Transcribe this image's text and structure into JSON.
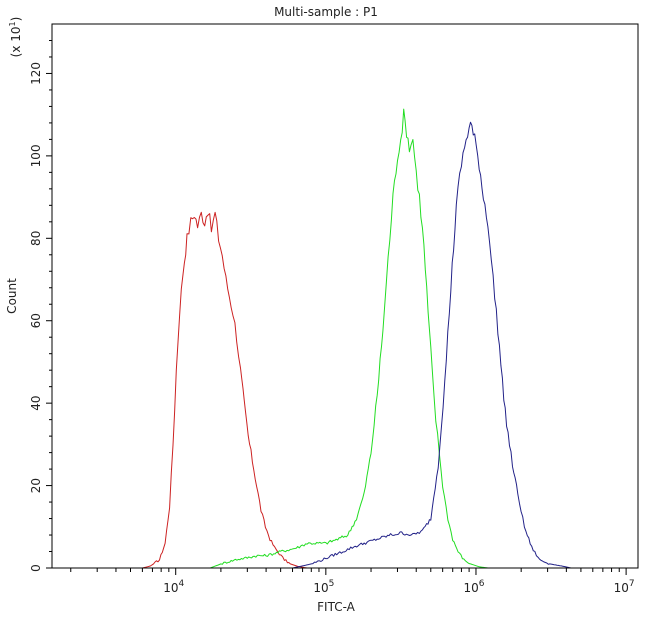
{
  "chart_data": {
    "type": "line",
    "title": "Multi-sample : P1",
    "xlabel": "FITC-A",
    "ylabel": "Count",
    "y_multiplier_label": "(x 10",
    "y_multiplier_exp": "1",
    "y_multiplier_close": ")",
    "xscale": "log",
    "xlim": [
      1500,
      12000000
    ],
    "ylim": [
      0,
      132
    ],
    "x_major_ticks": [
      {
        "value": 10000,
        "base": "10",
        "exp": "4"
      },
      {
        "value": 100000,
        "base": "10",
        "exp": "5"
      },
      {
        "value": 1000000,
        "base": "10",
        "exp": "6"
      },
      {
        "value": 10000000,
        "base": "10",
        "exp": "7"
      }
    ],
    "y_ticks": [
      {
        "value": 0,
        "label": "0"
      },
      {
        "value": 20,
        "label": "20"
      },
      {
        "value": 40,
        "label": "40"
      },
      {
        "value": 60,
        "label": "60"
      },
      {
        "value": 80,
        "label": "80"
      },
      {
        "value": 100,
        "label": "100"
      },
      {
        "value": 120,
        "label": "120"
      }
    ],
    "grid": false,
    "legend": "none",
    "series": [
      {
        "color": "#cc2222",
        "points": [
          [
            6000,
            0
          ],
          [
            6800,
            0.5
          ],
          [
            7800,
            2
          ],
          [
            8500,
            6
          ],
          [
            9100,
            15
          ],
          [
            9600,
            30
          ],
          [
            10100,
            48
          ],
          [
            10600,
            62
          ],
          [
            11200,
            72
          ],
          [
            11900,
            80
          ],
          [
            12600,
            84
          ],
          [
            13300,
            86
          ],
          [
            14000,
            83
          ],
          [
            14800,
            86
          ],
          [
            15600,
            84
          ],
          [
            16400,
            87
          ],
          [
            17300,
            82
          ],
          [
            18300,
            86
          ],
          [
            19300,
            80
          ],
          [
            20400,
            76
          ],
          [
            21600,
            70
          ],
          [
            22800,
            66
          ],
          [
            24100,
            62
          ],
          [
            25500,
            56
          ],
          [
            27000,
            48
          ],
          [
            28600,
            40
          ],
          [
            30400,
            32
          ],
          [
            32400,
            26
          ],
          [
            34600,
            20
          ],
          [
            37000,
            14
          ],
          [
            39600,
            10
          ],
          [
            42500,
            7
          ],
          [
            45500,
            5
          ],
          [
            49000,
            3.5
          ],
          [
            53000,
            2
          ],
          [
            58000,
            1
          ],
          [
            65000,
            0.4
          ],
          [
            75000,
            0
          ]
        ]
      },
      {
        "color": "#22dd22",
        "points": [
          [
            17000,
            0
          ],
          [
            20000,
            1
          ],
          [
            25000,
            2
          ],
          [
            30000,
            2.5
          ],
          [
            35000,
            3
          ],
          [
            40000,
            3
          ],
          [
            45000,
            3.5
          ],
          [
            50000,
            4
          ],
          [
            58000,
            4.5
          ],
          [
            65000,
            5
          ],
          [
            75000,
            6
          ],
          [
            85000,
            6
          ],
          [
            100000,
            6
          ],
          [
            120000,
            7
          ],
          [
            140000,
            8
          ],
          [
            160000,
            12
          ],
          [
            180000,
            18
          ],
          [
            200000,
            28
          ],
          [
            220000,
            42
          ],
          [
            240000,
            58
          ],
          [
            260000,
            75
          ],
          [
            280000,
            90
          ],
          [
            300000,
            100
          ],
          [
            315000,
            104
          ],
          [
            330000,
            110
          ],
          [
            345000,
            106
          ],
          [
            360000,
            102
          ],
          [
            380000,
            104
          ],
          [
            400000,
            96
          ],
          [
            420000,
            90
          ],
          [
            450000,
            78
          ],
          [
            480000,
            62
          ],
          [
            510000,
            48
          ],
          [
            540000,
            36
          ],
          [
            570000,
            28
          ],
          [
            600000,
            20
          ],
          [
            650000,
            12
          ],
          [
            700000,
            7
          ],
          [
            760000,
            4
          ],
          [
            830000,
            2
          ],
          [
            920000,
            1
          ],
          [
            1050000,
            0.3
          ],
          [
            1200000,
            0
          ]
        ]
      },
      {
        "color": "#222288",
        "points": [
          [
            60000,
            0
          ],
          [
            70000,
            0.5
          ],
          [
            80000,
            1
          ],
          [
            95000,
            2
          ],
          [
            110000,
            3
          ],
          [
            130000,
            4
          ],
          [
            150000,
            5
          ],
          [
            180000,
            6
          ],
          [
            220000,
            7
          ],
          [
            270000,
            8
          ],
          [
            320000,
            8.5
          ],
          [
            380000,
            8
          ],
          [
            440000,
            9
          ],
          [
            500000,
            12
          ],
          [
            560000,
            25
          ],
          [
            620000,
            45
          ],
          [
            680000,
            68
          ],
          [
            740000,
            88
          ],
          [
            800000,
            98
          ],
          [
            860000,
            104
          ],
          [
            920000,
            108
          ],
          [
            980000,
            104
          ],
          [
            1050000,
            98
          ],
          [
            1120000,
            90
          ],
          [
            1200000,
            84
          ],
          [
            1300000,
            70
          ],
          [
            1400000,
            58
          ],
          [
            1500000,
            45
          ],
          [
            1600000,
            35
          ],
          [
            1750000,
            25
          ],
          [
            1900000,
            18
          ],
          [
            2100000,
            10
          ],
          [
            2350000,
            5
          ],
          [
            2650000,
            2
          ],
          [
            3100000,
            1
          ],
          [
            3700000,
            0.5
          ],
          [
            4300000,
            0
          ]
        ]
      }
    ]
  }
}
